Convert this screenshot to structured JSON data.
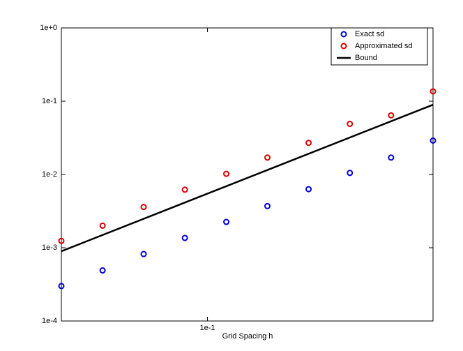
{
  "chart_data": {
    "type": "scatter",
    "xlabel": "Grid Spacing h",
    "xlog": true,
    "ylog": true,
    "x": [
      0.06,
      0.0693,
      0.08,
      0.0924,
      0.1068,
      0.1233,
      0.1424,
      0.1645,
      0.19,
      0.22
    ],
    "series": [
      {
        "name": "Exact sd",
        "type": "scatter",
        "color": "#0000dd",
        "values": [
          0.0003,
          0.00049,
          0.00082,
          0.00136,
          0.00225,
          0.0037,
          0.0063,
          0.0105,
          0.017,
          0.029
        ]
      },
      {
        "name": "Approximated sd",
        "type": "scatter",
        "color": "#dd0000",
        "values": [
          0.00124,
          0.002,
          0.0036,
          0.0062,
          0.0102,
          0.017,
          0.027,
          0.049,
          0.064,
          0.136
        ]
      },
      {
        "name": "Bound",
        "type": "line",
        "color": "#000000",
        "x": [
          0.06,
          0.22
        ],
        "values": [
          0.000895,
          0.0895
        ]
      }
    ],
    "xlim": [
      0.06,
      0.22
    ],
    "ylim": [
      0.0001,
      1
    ],
    "xticks": [
      {
        "value": 0.1,
        "label": "1e-1"
      }
    ],
    "yticks": [
      {
        "value": 0.0001,
        "label": "1e-4"
      },
      {
        "value": 0.001,
        "label": "1e-3"
      },
      {
        "value": 0.01,
        "label": "1e-2"
      },
      {
        "value": 0.1,
        "label": "1e-1"
      },
      {
        "value": 1,
        "label": "1e+0"
      }
    ],
    "legend": "top-right"
  }
}
